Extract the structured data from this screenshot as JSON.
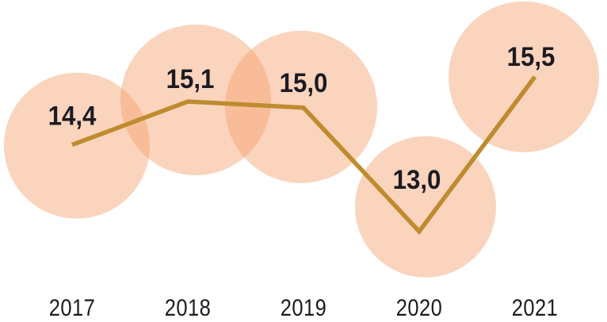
{
  "chart_data": {
    "type": "line",
    "categories": [
      "2017",
      "2018",
      "2019",
      "2020",
      "2021"
    ],
    "values": [
      14.4,
      15.1,
      15.0,
      13.0,
      15.5
    ],
    "value_labels": [
      "14,4",
      "15,1",
      "15,0",
      "13,0",
      "15,5"
    ],
    "decimal_separator": ",",
    "title": "",
    "xlabel": "",
    "ylabel": "",
    "ylim": [
      12.5,
      16.0
    ],
    "grid": false,
    "legend": "none",
    "marker_style": "large-translucent-bubble",
    "colors": {
      "background": "#FFFFFF",
      "bubble_fill": "#F69F6C",
      "bubble_opacity": 0.45,
      "bubble_single_appearance": "#FBD4BD",
      "bubble_overlap_appearance": "#F9BC99",
      "line": "#BE8C2E",
      "label_text": "#1B1B22"
    }
  }
}
